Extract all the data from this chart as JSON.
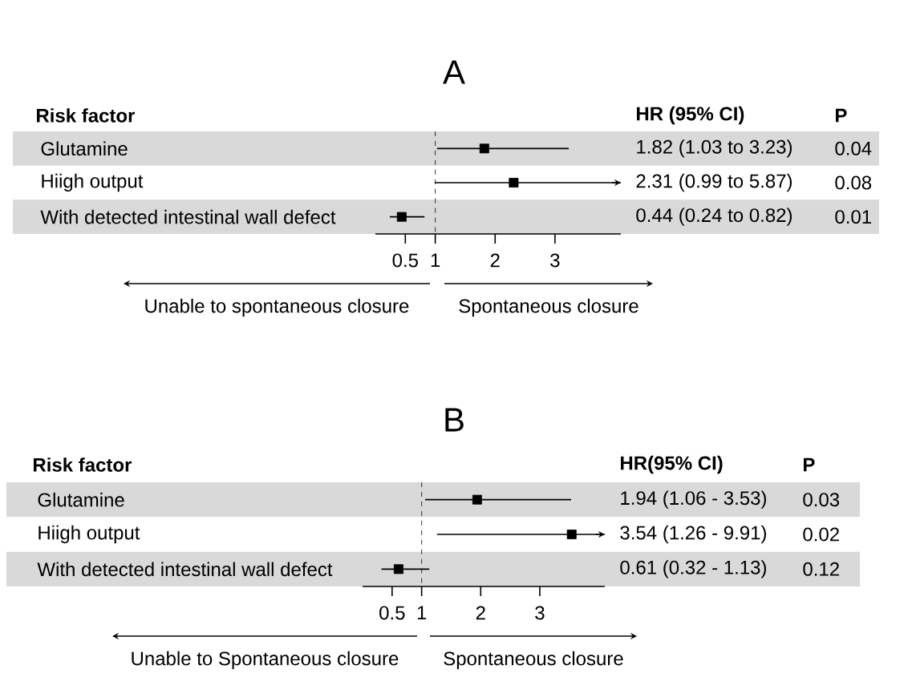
{
  "chart_data": [
    {
      "type": "scatter",
      "title": "A",
      "ylabel": "Risk factor",
      "orientation": "horizontal",
      "marker": "square",
      "color": "#000000",
      "categories": [
        "Glutamine",
        "Hiigh output",
        "With detected intestinal wall defect"
      ],
      "values": [
        1.82,
        2.31,
        0.44
      ],
      "errors": [
        [
          1.03,
          3.23
        ],
        [
          0.99,
          5.87
        ],
        [
          0.24,
          0.82
        ]
      ],
      "value_labels": [
        "1.82 (1.03 to 3.23)",
        "2.31 (0.99 to 5.87)",
        "0.44 (0.24 to 0.82)"
      ],
      "xlim": [
        0,
        4.1
      ],
      "xticks": [
        0.5,
        1,
        2,
        3
      ],
      "ref_lines": [
        {
          "axis": "x",
          "value": 1,
          "line_style": "dashed"
        }
      ],
      "annotations": [
        "HR (95% CI)",
        "P",
        "0.04",
        "0.08",
        "0.01",
        "Unable to spontaneous closure",
        "Spontaneous closure"
      ]
    },
    {
      "type": "scatter",
      "title": "B",
      "ylabel": "Risk factor",
      "orientation": "horizontal",
      "marker": "square",
      "color": "#000000",
      "categories": [
        "Glutamine",
        "Hiigh output",
        "With detected intestinal wall defect"
      ],
      "values": [
        1.94,
        3.54,
        0.61
      ],
      "errors": [
        [
          1.06,
          3.53
        ],
        [
          1.26,
          9.91
        ],
        [
          0.32,
          1.13
        ]
      ],
      "value_labels": [
        "1.94 (1.06 - 3.53)",
        "3.54 (1.26 - 9.91)",
        "0.61 (0.32 - 1.13)"
      ],
      "xlim": [
        0,
        4.1
      ],
      "xticks": [
        0.5,
        1,
        2,
        3
      ],
      "ref_lines": [
        {
          "axis": "x",
          "value": 1,
          "line_style": "dashed"
        }
      ],
      "annotations": [
        "HR(95% CI)",
        "P",
        "0.03",
        "0.02",
        "0.12",
        "Unable to Spontaneous closure",
        "Spontaneous closure"
      ]
    }
  ]
}
